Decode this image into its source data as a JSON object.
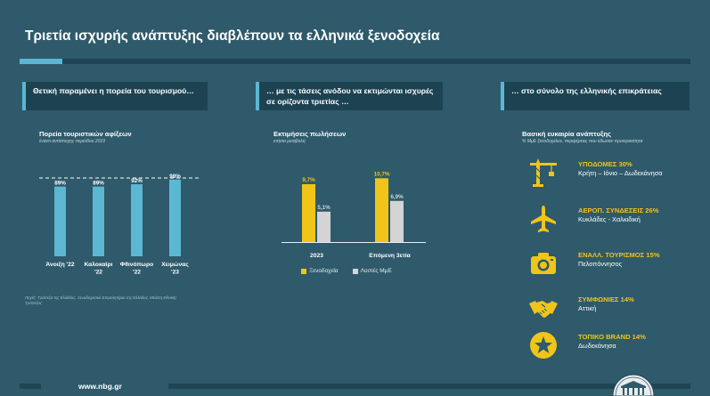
{
  "title": "Τριετία ισχυρής ανάπτυξης διαβλέπουν τα ελληνικά ξενοδοχεία",
  "footer": {
    "url": "www.nbg.gr"
  },
  "colors": {
    "background": "#2e5a6b",
    "accent": "#5bb7d2",
    "header": "#1d4353",
    "yellow": "#f0c419",
    "gray": "#d4d4d4"
  },
  "panels": [
    {
      "header": "Θετική παραμένει η πορεία του τουρισμού…"
    },
    {
      "header": "… με τις τάσεις ανόδου να εκτιμώνται ισχυρές σε ορίζοντα τριετίας …"
    },
    {
      "header": "… στο σύνολο της ελληνικής επικράτειας"
    }
  ],
  "arrivals": {
    "subtitle": "Πορεία τουριστικών αφίξεων",
    "caption": "έναντι αντίστοιχης περιόδου 2019",
    "note": "Πηγές: Τράπεζα της Ελλάδος, Ξενοδοχειακό Επιμελητήριο της Ελλάδος, Μελέτη Εθνικής Τράπεζας",
    "chart_data": {
      "type": "bar",
      "categories": [
        [
          "Άνοιξη '22"
        ],
        [
          "Καλοκαίρι",
          "'22"
        ],
        [
          "Φθινόπωρο",
          "'22"
        ],
        [
          "Χειμώνας",
          "'23"
        ]
      ],
      "values": [
        89,
        89,
        92,
        98
      ],
      "labels": [
        "89%",
        "89%",
        "92%",
        "98%"
      ],
      "reference_line": 100,
      "color": "#5bb7d2"
    }
  },
  "sales": {
    "subtitle": "Εκτιμήσεις πωλήσεων",
    "caption": "ετήσια μεταβολή",
    "legend": [
      "Ξενοδοχεία",
      "Λοιπές ΜμΕ"
    ],
    "chart_data": {
      "type": "bar",
      "categories": [
        "2023",
        "Επόμενη 3ετία"
      ],
      "series": [
        {
          "name": "Ξενοδοχεία",
          "values": [
            9.7,
            10.7
          ],
          "labels": [
            "9,7%",
            "10,7%"
          ],
          "color": "#f0c419"
        },
        {
          "name": "Λοιπές ΜμΕ",
          "values": [
            5.1,
            6.9
          ],
          "labels": [
            "5,1%",
            "6,9%"
          ],
          "color": "#d4d4d4"
        }
      ]
    }
  },
  "growth": {
    "subtitle": "Βασική ευκαιρία ανάπτυξης",
    "caption": "% ΜμΕ ξενοδοχείων, περιφέρειες που έδωσαν προτεραιότητα",
    "drivers": [
      {
        "icon": "crane-icon",
        "name": "ΥΠΟΔΟΜΕΣ 30%",
        "regions": "Κρήτη – Ιόνιο – Δωδεκάνησα"
      },
      {
        "icon": "airplane-icon",
        "name": "ΑΕΡΟΠ. ΣΥΝΔΕΣΕΙΣ 26%",
        "regions": "Κυκλάδες - Χαλκιδική"
      },
      {
        "icon": "camera-icon",
        "name": "ΕΝΑΛΛ. ΤΟΥΡΙΣΜΟΣ 15%",
        "regions": "Πελοπόννησος"
      },
      {
        "icon": "handshake-icon",
        "name": "ΣΥΜΦΩΝΙΕΣ 14%",
        "regions": "Αττική"
      },
      {
        "icon": "star-badge-icon",
        "name": "ΤΟΠΙΚΟ BRAND 14%",
        "regions": "Δωδεκάνησα"
      }
    ]
  }
}
